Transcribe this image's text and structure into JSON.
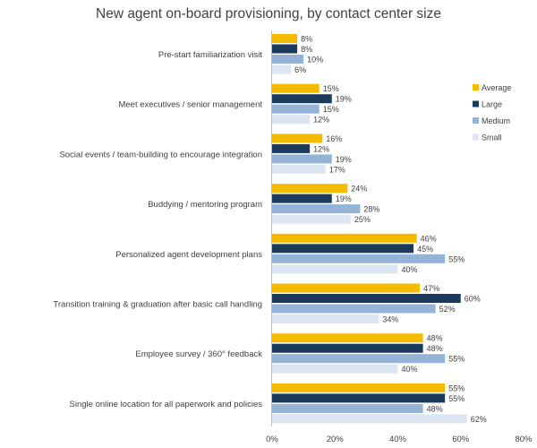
{
  "chart_data": {
    "type": "bar",
    "orientation": "horizontal",
    "title": "New agent on-board provisioning, by contact center size",
    "xlabel": "",
    "ylabel": "",
    "xlim": [
      0,
      80
    ],
    "x_ticks": [
      "0%",
      "20%",
      "40%",
      "60%",
      "80%"
    ],
    "grid": false,
    "legend_position": "right",
    "categories": [
      "Pre-start familiarization visit",
      "Meet executives / senior management",
      "Social events / team-building to encourage integration",
      "Buddying / mentoring program",
      "Personalized agent development plans",
      "Transition training & graduation after basic call handling",
      "Employee survey / 360° feedback",
      "Single online location for all paperwork and policies"
    ],
    "series": [
      {
        "name": "Average",
        "color": "#F5BB00",
        "values": [
          8,
          15,
          16,
          24,
          46,
          47,
          48,
          55
        ]
      },
      {
        "name": "Large",
        "color": "#1B3A5C",
        "values": [
          8,
          19,
          12,
          19,
          45,
          60,
          48,
          55
        ]
      },
      {
        "name": "Medium",
        "color": "#95B3D7",
        "values": [
          10,
          15,
          19,
          28,
          55,
          52,
          55,
          48
        ]
      },
      {
        "name": "Small",
        "color": "#DCE6F2",
        "values": [
          6,
          12,
          17,
          25,
          40,
          34,
          40,
          62
        ]
      }
    ]
  }
}
